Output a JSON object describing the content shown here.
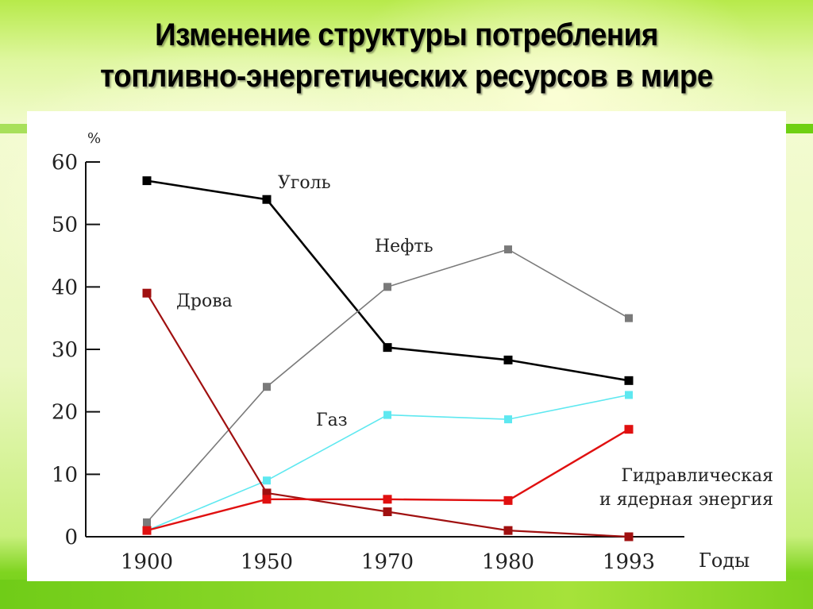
{
  "title": {
    "line1": "Изменение структуры потребления",
    "line2": "топливно-энергетических ресурсов в мире"
  },
  "chart_data": {
    "type": "line",
    "title": "Изменение структуры потребления топливно-энергетических ресурсов в мире",
    "xlabel": "Годы",
    "ylabel": "%",
    "categories": [
      "1900",
      "1950",
      "1970",
      "1980",
      "1993"
    ],
    "yticks": [
      "0",
      "10",
      "20",
      "30",
      "40",
      "50",
      "60"
    ],
    "ylim": [
      0,
      60
    ],
    "grid": false,
    "legend": "inline labels",
    "series": [
      {
        "name": "Уголь",
        "color": "#000000",
        "values": [
          57,
          54,
          30.3,
          28.3,
          25
        ]
      },
      {
        "name": "Нефть",
        "color": "#7a7a7a",
        "values": [
          2.3,
          24,
          40,
          46,
          35
        ]
      },
      {
        "name": "Газ",
        "color": "#5ee8f0",
        "values": [
          1,
          9,
          19.5,
          18.8,
          22.7
        ]
      },
      {
        "name": "Дрова",
        "color": "#a01010",
        "values": [
          39,
          7,
          4,
          1,
          0
        ]
      },
      {
        "name": "Гидравлическая и ядерная энергия",
        "color": "#e01010",
        "values": [
          1,
          6,
          6,
          5.8,
          17.2
        ]
      }
    ],
    "labels": {
      "coal": "Уголь",
      "oil": "Нефть",
      "gas": "Газ",
      "wood": "Дрова",
      "hydro_line1": "Гидравлическая",
      "hydro_line2": "и ядерная энергия"
    }
  }
}
